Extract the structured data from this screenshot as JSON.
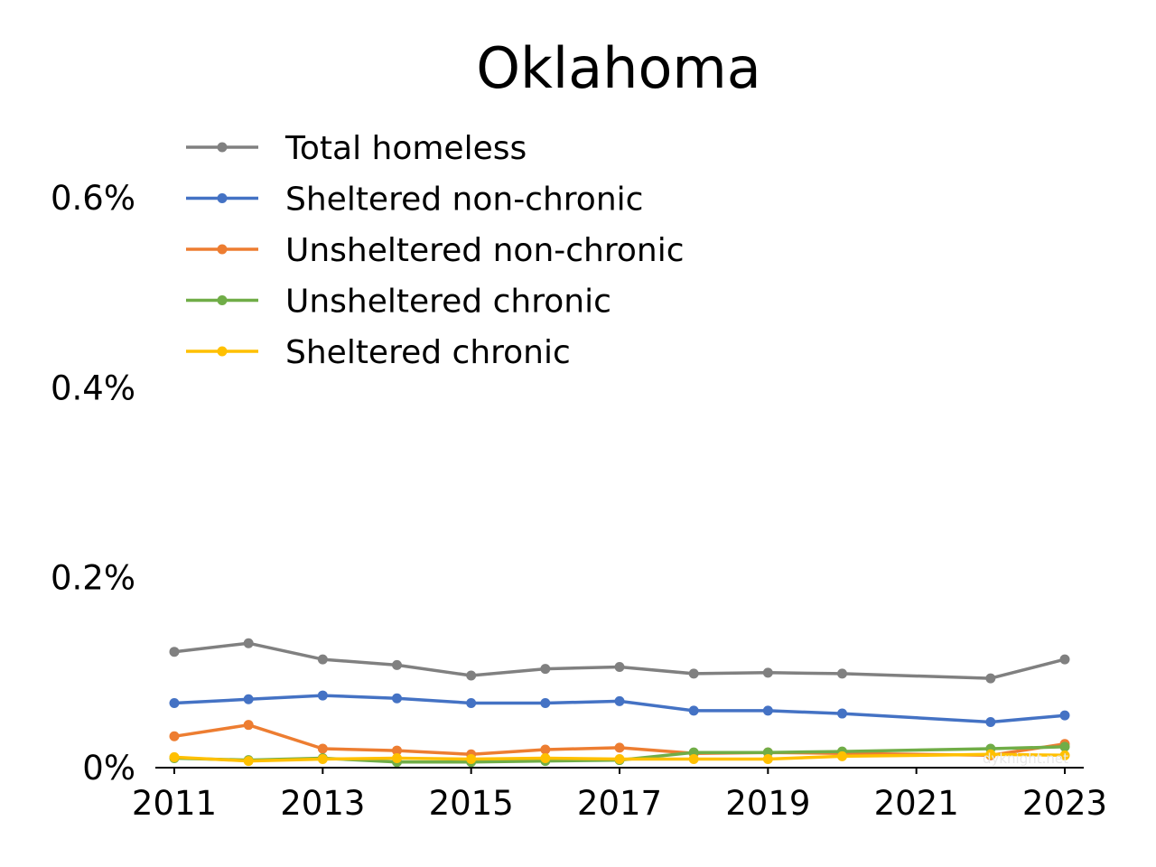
{
  "chart_data": {
    "type": "line",
    "title": "Oklahoma",
    "xlabel": "",
    "ylabel": "",
    "x": [
      2011,
      2012,
      2013,
      2014,
      2015,
      2016,
      2017,
      2018,
      2019,
      2020,
      2022,
      2023
    ],
    "xticks": [
      2011,
      2013,
      2015,
      2017,
      2019,
      2021,
      2023
    ],
    "xlim": [
      2011,
      2023
    ],
    "yticks": [
      0,
      0.2,
      0.4,
      0.6
    ],
    "ytick_labels": [
      "0%",
      "0.2%",
      "0.4%",
      "0.6%"
    ],
    "ylim": [
      0,
      0.6
    ],
    "grid": false,
    "legend_position": "top-left",
    "watermark": "dyknight.net",
    "series": [
      {
        "name": "Total homeless",
        "color": "#808080",
        "values": [
          0.122,
          0.131,
          0.114,
          0.108,
          0.097,
          0.104,
          0.106,
          0.099,
          0.1,
          0.099,
          0.094,
          0.114
        ]
      },
      {
        "name": "Sheltered non-chronic",
        "color": "#4472C4",
        "values": [
          0.068,
          0.072,
          0.076,
          0.073,
          0.068,
          0.068,
          0.07,
          0.06,
          0.06,
          0.057,
          0.048,
          0.055
        ]
      },
      {
        "name": "Unsheltered non-chronic",
        "color": "#ED7D31",
        "values": [
          0.033,
          0.045,
          0.02,
          0.018,
          0.014,
          0.019,
          0.021,
          0.015,
          0.016,
          0.015,
          0.013,
          0.025
        ]
      },
      {
        "name": "Unsheltered chronic",
        "color": "#70AD47",
        "values": [
          0.01,
          0.008,
          0.01,
          0.006,
          0.006,
          0.007,
          0.008,
          0.016,
          0.016,
          0.017,
          0.02,
          0.022
        ]
      },
      {
        "name": "Sheltered chronic",
        "color": "#FFC000",
        "values": [
          0.011,
          0.007,
          0.009,
          0.01,
          0.009,
          0.01,
          0.009,
          0.009,
          0.009,
          0.012,
          0.014,
          0.013
        ]
      }
    ]
  }
}
